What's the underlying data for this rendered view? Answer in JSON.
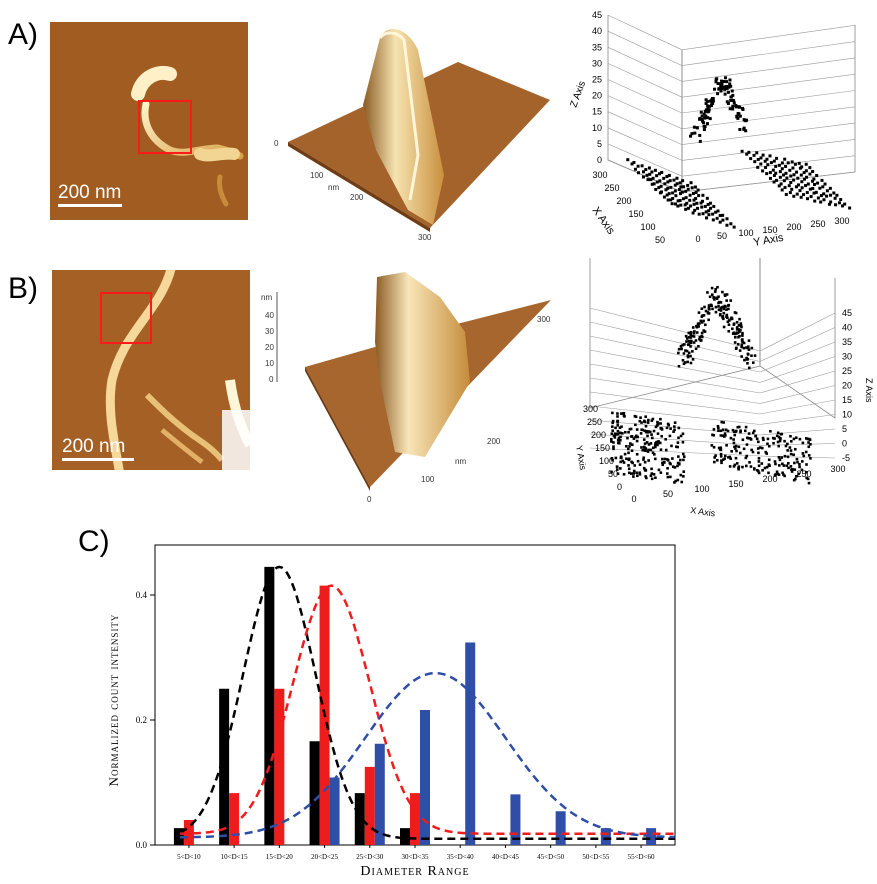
{
  "figure": {
    "panels": {
      "a": {
        "label": "A)",
        "scale_label": "200 nm"
      },
      "b": {
        "label": "B)",
        "scale_label": "200 nm"
      },
      "c": {
        "label": "C)"
      }
    },
    "surface_a": {
      "axis_y_ticks": [
        "0",
        "100",
        "200",
        "300"
      ],
      "axis_x_ticks": [
        "100",
        "200",
        "300"
      ],
      "unit": "nm"
    },
    "surface_b": {
      "z_ticks": [
        "0",
        "10",
        "20",
        "30",
        "40"
      ],
      "left_ticks": [
        "0",
        "100",
        "200",
        "300"
      ],
      "right_ticks": [
        "100",
        "200",
        "300"
      ],
      "unit": "nm"
    },
    "scatter_a": {
      "z_label": "Z Axis",
      "x_label": "X Axis",
      "y_label": "Y Axis",
      "z_ticks": [
        "0",
        "5",
        "10",
        "15",
        "20",
        "25",
        "30",
        "35",
        "40",
        "45"
      ],
      "x_ticks": [
        "300",
        "250",
        "200",
        "150",
        "100",
        "50"
      ],
      "y_ticks": [
        "0",
        "50",
        "100",
        "150",
        "200",
        "250",
        "300"
      ]
    },
    "scatter_b": {
      "z_label": "Z Axis",
      "x_label": "X Axis",
      "y_label": "Y Axis",
      "z_ticks": [
        "-5",
        "0",
        "5",
        "10",
        "15",
        "20",
        "25",
        "30",
        "35",
        "40",
        "45"
      ],
      "y_ticks": [
        "0",
        "50",
        "100",
        "150",
        "200",
        "250",
        "300"
      ],
      "x_ticks": [
        "0",
        "50",
        "100",
        "150",
        "200",
        "250",
        "300"
      ]
    }
  },
  "chart_data": {
    "type": "bar",
    "title": "",
    "xlabel": "Diameter Range",
    "ylabel": "Normalized count intensity",
    "ylim": [
      0,
      0.48
    ],
    "yticks": [
      "0.0",
      "0.2",
      "0.4"
    ],
    "categories": [
      "5<D<10",
      "10<D<15",
      "15<D<20",
      "20<D<25",
      "25<D<30",
      "30<D<35",
      "35<D<40",
      "40<D<45",
      "45<D<50",
      "50<D<55",
      "55<D<60"
    ],
    "series": [
      {
        "color": "#000000",
        "values": [
          0.027,
          0.25,
          0.445,
          0.166,
          0.083,
          0.027,
          null,
          null,
          null,
          null,
          null
        ]
      },
      {
        "color": "#ee1c1c",
        "values": [
          0.04,
          0.083,
          0.25,
          0.415,
          0.125,
          0.083,
          null,
          null,
          null,
          null,
          null
        ]
      },
      {
        "color": "#2e4ea8",
        "values": [
          null,
          null,
          null,
          0.108,
          0.162,
          0.216,
          0.324,
          0.081,
          0.054,
          0.027,
          0.027
        ]
      }
    ],
    "fits": [
      {
        "color": "#000000",
        "mean": 2.0,
        "sd": 0.8,
        "peak": 0.445,
        "base": 0.01
      },
      {
        "color": "#ee1c1c",
        "mean": 3.15,
        "sd": 0.85,
        "peak": 0.415,
        "base": 0.018
      },
      {
        "color": "#2e4ea8",
        "mean": 5.45,
        "sd": 1.55,
        "peak": 0.275,
        "base": 0.012
      }
    ],
    "grid": false,
    "legend": "none"
  }
}
